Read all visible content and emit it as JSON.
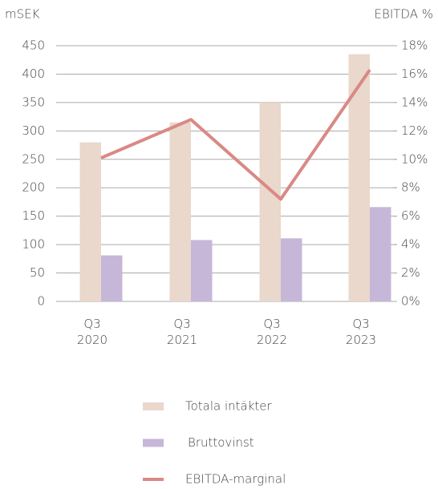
{
  "chart_data": {
    "type": "bar_line",
    "y_label": "mSEK",
    "y2_label": "EBITDA %",
    "categories": [
      "Q3 2020",
      "Q3 2021",
      "Q3 2022",
      "Q3 2023"
    ],
    "series": [
      {
        "name": "Totala intäkter",
        "color": "#e9d8cb",
        "type": "bar",
        "values": [
          280,
          315,
          350,
          435
        ]
      },
      {
        "name": "Bruttovinst",
        "color": "#c6b7d8",
        "type": "bar",
        "values": [
          81,
          108,
          111,
          166
        ]
      },
      {
        "name": "EBITDA-marginal",
        "color": "#d98985",
        "type": "line",
        "axis": "y2",
        "values": [
          10.1,
          12.8,
          7.2,
          16.3
        ]
      }
    ],
    "ylim": [
      0,
      450
    ],
    "yticks": [
      0,
      50,
      100,
      150,
      200,
      250,
      300,
      350,
      400,
      450
    ],
    "y2lim": [
      0,
      18
    ],
    "y2ticks": [
      {
        "value": 0,
        "label": "0%"
      },
      {
        "value": 2,
        "label": "2%"
      },
      {
        "value": 4,
        "label": "4%"
      },
      {
        "value": 6,
        "label": "6%"
      },
      {
        "value": 8,
        "label": "8%"
      },
      {
        "value": 10,
        "label": "10%"
      },
      {
        "value": 12,
        "label": "12%"
      },
      {
        "value": 14,
        "label": "14%"
      },
      {
        "value": 16,
        "label": "16%"
      },
      {
        "value": 18,
        "label": "18%"
      }
    ],
    "grid": true
  }
}
